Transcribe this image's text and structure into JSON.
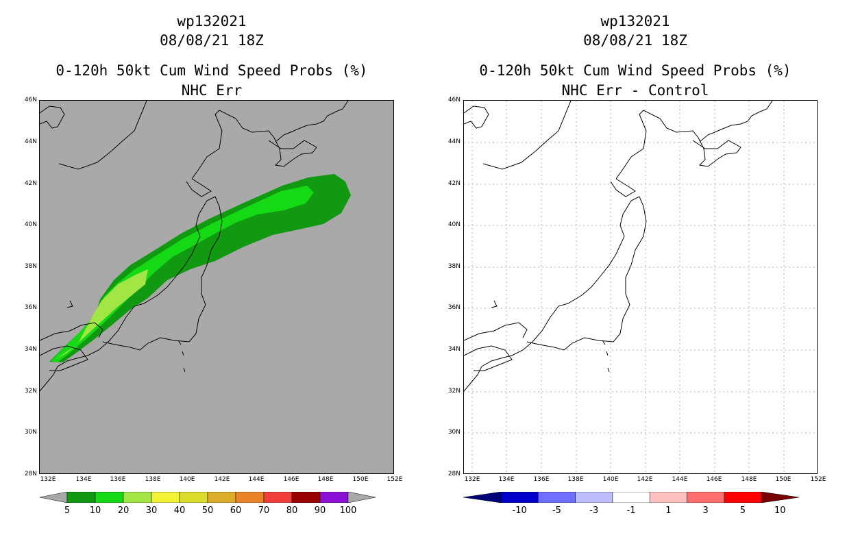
{
  "panels": [
    {
      "title_line1": "wp132021",
      "title_line2": "08/08/21 18Z",
      "title_line3": "0-120h 50kt Cum Wind Speed Probs (%)",
      "title_line4": "NHC Err",
      "background": "#a9a9a9",
      "grid": false,
      "colorbar_labels": [
        "5",
        "10",
        "20",
        "30",
        "40",
        "50",
        "60",
        "70",
        "80",
        "90",
        "100"
      ],
      "colorbar_colors": [
        "#119a11",
        "#16d916",
        "#a2e646",
        "#f2f237",
        "#dcdc2c",
        "#dcac2b",
        "#eb8429",
        "#f03e3c",
        "#9b0000",
        "#8c0fd6"
      ],
      "low_arrow_color": "#a9a9a9",
      "high_arrow_color": "#a9a9a9"
    },
    {
      "title_line1": "wp132021",
      "title_line2": "08/08/21 18Z",
      "title_line3": "0-120h 50kt Cum Wind Speed Probs (%)",
      "title_line4": "NHC Err - Control",
      "background": "#ffffff",
      "grid": true,
      "colorbar_labels": [
        "-10",
        "-5",
        "-3",
        "-1",
        "1",
        "3",
        "5",
        "10"
      ],
      "colorbar_colors": [
        "#0000c8",
        "#6e6eff",
        "#bebeff",
        "#ffffff",
        "#ffc0c0",
        "#ff6e6e",
        "#ff0000"
      ],
      "low_arrow_color": "#000078",
      "high_arrow_color": "#780000"
    }
  ],
  "lat_labels": [
    "46N",
    "44N",
    "42N",
    "40N",
    "38N",
    "36N",
    "34N",
    "32N",
    "30N",
    "28N"
  ],
  "lon_labels": [
    "132E",
    "134E",
    "136E",
    "138E",
    "140E",
    "142E",
    "144E",
    "146E",
    "148E",
    "150E",
    "152E"
  ],
  "probability_swath": {
    "contour_levels": [
      5,
      10,
      20
    ],
    "colors": [
      "#119a11",
      "#16d916",
      "#a2e646"
    ]
  }
}
